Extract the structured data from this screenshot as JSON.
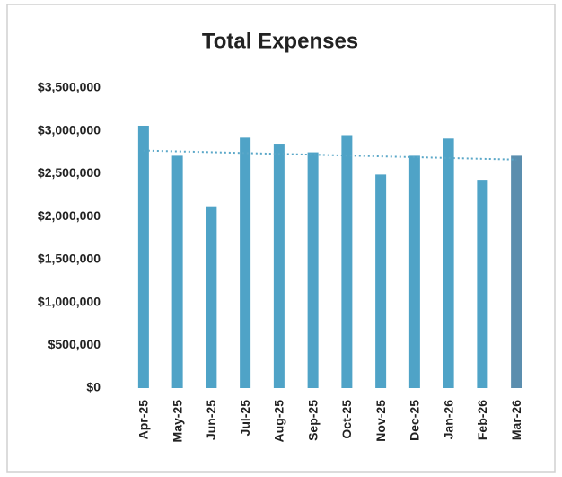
{
  "chart_data": {
    "type": "bar",
    "title": "Total Expenses",
    "categories": [
      "Apr-25",
      "May-25",
      "Jun-25",
      "Jul-25",
      "Aug-25",
      "Sep-25",
      "Oct-25",
      "Nov-25",
      "Dec-25",
      "Jan-26",
      "Feb-26",
      "Mar-26"
    ],
    "values": [
      3060000,
      2710000,
      2120000,
      2920000,
      2850000,
      2750000,
      2950000,
      2490000,
      2710000,
      2910000,
      2430000,
      2710000
    ],
    "colors": [
      "#4fa3c7",
      "#4fa3c7",
      "#4fa3c7",
      "#4fa3c7",
      "#4fa3c7",
      "#4fa3c7",
      "#4fa3c7",
      "#4fa3c7",
      "#4fa3c7",
      "#4fa3c7",
      "#4fa3c7",
      "#5b8eae"
    ],
    "trendline": true,
    "ylim": [
      0,
      3500000
    ],
    "yticks": [
      {
        "value": 0,
        "label": "$0"
      },
      {
        "value": 500000,
        "label": "$500,000"
      },
      {
        "value": 1000000,
        "label": "$1,000,000"
      },
      {
        "value": 1500000,
        "label": "$1,500,000"
      },
      {
        "value": 2000000,
        "label": "$2,000,000"
      },
      {
        "value": 2500000,
        "label": "$2,500,000"
      },
      {
        "value": 3000000,
        "label": "$3,000,000"
      },
      {
        "value": 3500000,
        "label": "$3,500,000"
      }
    ],
    "grid": false
  }
}
